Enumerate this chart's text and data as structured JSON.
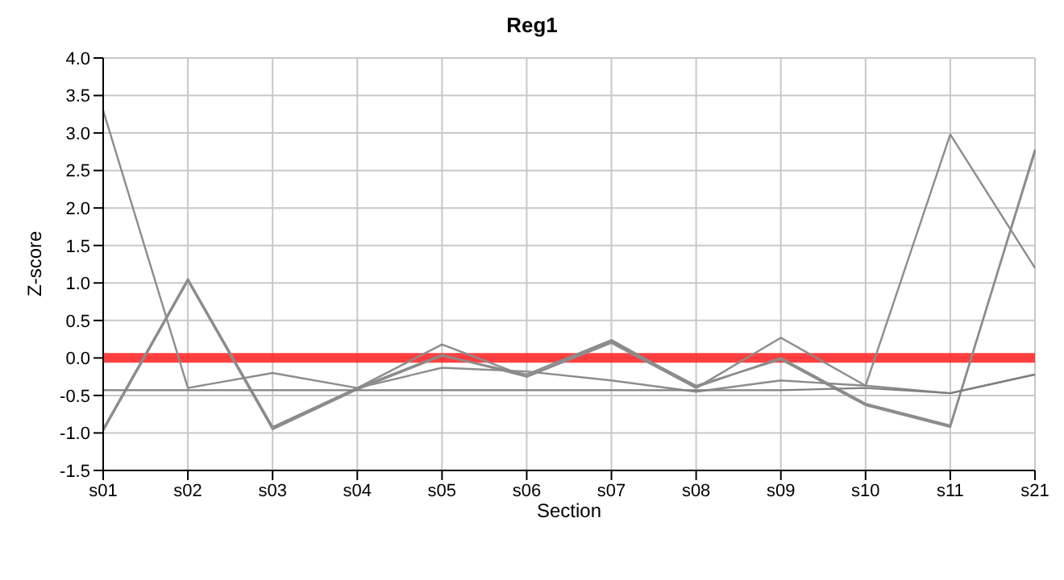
{
  "chart_data": {
    "type": "line",
    "title": "Reg1",
    "xlabel": "Section",
    "ylabel": "Z-score",
    "categories": [
      "s01",
      "s02",
      "s03",
      "s04",
      "s05",
      "s06",
      "s07",
      "s08",
      "s09",
      "s10",
      "s11",
      "s21"
    ],
    "series": [
      {
        "color": "#8c8c8c",
        "values": [
          3.3,
          -0.4,
          -0.2,
          -0.4,
          -0.13,
          -0.18,
          -0.3,
          -0.45,
          -0.3,
          -0.37,
          2.98,
          1.2
        ]
      },
      {
        "color": "#8c8c8c",
        "values": [
          -0.95,
          1.05,
          -0.93,
          -0.4,
          0.04,
          -0.25,
          0.22,
          -0.37,
          -0.02,
          -0.63,
          -0.92,
          2.78
        ]
      },
      {
        "color": "#8c8c8c",
        "values": [
          -0.97,
          1.03,
          -0.95,
          -0.42,
          0.03,
          -0.22,
          0.24,
          -0.39,
          0.0,
          -0.61,
          -0.9,
          2.75
        ]
      },
      {
        "color": "#8c8c8c",
        "values": [
          -0.95,
          1.05,
          -0.92,
          -0.4,
          0.18,
          -0.25,
          0.2,
          -0.4,
          0.27,
          -0.37,
          -0.47,
          -0.22
        ]
      },
      {
        "color": "#808080",
        "values": [
          -0.43,
          -0.43,
          -0.43,
          -0.43,
          -0.43,
          -0.43,
          -0.43,
          -0.43,
          -0.43,
          -0.4,
          -0.47,
          -0.22
        ]
      }
    ],
    "ylim": [
      -1.5,
      4
    ],
    "yticks": [
      {
        "value": -1.5,
        "label": "-1.5"
      },
      {
        "value": -1,
        "label": "-1.0"
      },
      {
        "value": -0.5,
        "label": "-0.5"
      },
      {
        "value": 0,
        "label": "0.0"
      },
      {
        "value": 0.5,
        "label": "0.5"
      },
      {
        "value": 1,
        "label": "1.0"
      },
      {
        "value": 1.5,
        "label": "1.5"
      },
      {
        "value": 2,
        "label": "2.0"
      },
      {
        "value": 2.5,
        "label": "2.5"
      },
      {
        "value": 3,
        "label": "3.0"
      },
      {
        "value": 3.5,
        "label": "3.5"
      },
      {
        "value": 4,
        "label": "4.0"
      }
    ],
    "ref_lines": [
      {
        "axis": "y",
        "value": 0,
        "color": "#ff2020"
      }
    ],
    "grid": true,
    "marker": "none",
    "line_style": "solid"
  }
}
